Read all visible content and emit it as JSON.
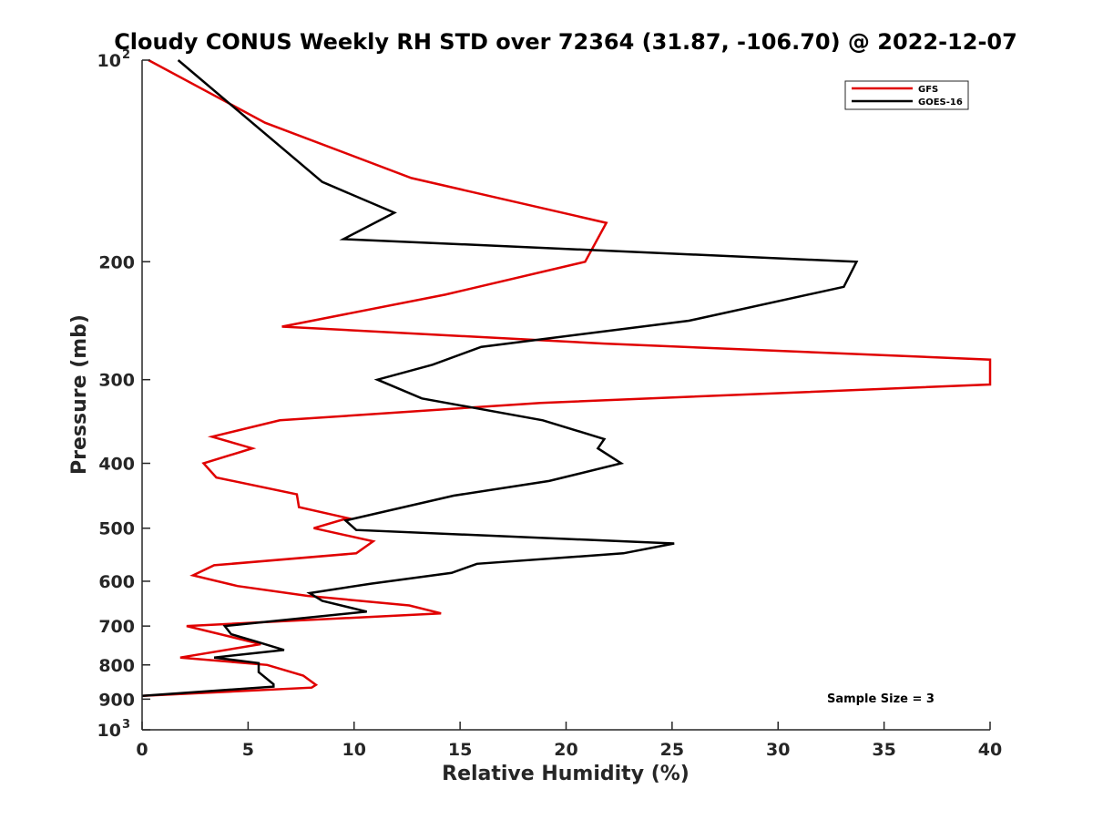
{
  "chart_data": {
    "type": "line",
    "title": "Cloudy CONUS Weekly RH STD over 72364 (31.87, -106.70) @ 2022-12-07",
    "xlabel": "Relative Humidity (%)",
    "ylabel": "Pressure (mb)",
    "xlim": [
      0,
      40
    ],
    "ylim": [
      100,
      1000
    ],
    "y_scale": "log",
    "y_reversed": true,
    "grid": false,
    "legend_position": "top-right",
    "x_ticks": [
      "0",
      "5",
      "10",
      "15",
      "20",
      "25",
      "30",
      "35",
      "40"
    ],
    "y_ticks": [
      {
        "value": 100,
        "base": "10",
        "exp": "2"
      },
      {
        "value": 200,
        "label": "200"
      },
      {
        "value": 300,
        "label": "300"
      },
      {
        "value": 400,
        "label": "400"
      },
      {
        "value": 500,
        "label": "500"
      },
      {
        "value": 600,
        "label": "600"
      },
      {
        "value": 700,
        "label": "700"
      },
      {
        "value": 800,
        "label": "800"
      },
      {
        "value": 900,
        "label": "900"
      },
      {
        "value": 1000,
        "base": "10",
        "exp": "3"
      }
    ],
    "annotation": "Sample Size = 3",
    "series": [
      {
        "name": "GFS",
        "color": "#e00000",
        "points": [
          [
            0.3,
            100
          ],
          [
            5.8,
            124
          ],
          [
            12.7,
            150
          ],
          [
            21.9,
            175
          ],
          [
            20.9,
            200
          ],
          [
            14.3,
            224
          ],
          [
            6.6,
            250
          ],
          [
            21.8,
            265
          ],
          [
            40.0,
            280
          ],
          [
            40.0,
            305
          ],
          [
            18.8,
            325
          ],
          [
            6.5,
            345
          ],
          [
            3.3,
            365
          ],
          [
            5.2,
            380
          ],
          [
            2.9,
            400
          ],
          [
            3.5,
            420
          ],
          [
            7.3,
            445
          ],
          [
            7.4,
            465
          ],
          [
            9.7,
            483
          ],
          [
            8.1,
            500
          ],
          [
            10.9,
            523
          ],
          [
            10.1,
            545
          ],
          [
            3.4,
            568
          ],
          [
            2.4,
            588
          ],
          [
            4.5,
            610
          ],
          [
            7.8,
            631
          ],
          [
            12.6,
            652
          ],
          [
            14.1,
            670
          ],
          [
            2.1,
            700
          ],
          [
            5.6,
            745
          ],
          [
            1.8,
            780
          ],
          [
            5.9,
            800
          ],
          [
            7.6,
            830
          ],
          [
            8.2,
            857
          ],
          [
            8.0,
            865
          ],
          [
            0.0,
            890
          ]
        ]
      },
      {
        "name": "GOES-16",
        "color": "#000000",
        "points": [
          [
            1.7,
            100
          ],
          [
            8.5,
            152
          ],
          [
            11.9,
            169
          ],
          [
            9.5,
            185
          ],
          [
            33.7,
            200
          ],
          [
            33.1,
            218
          ],
          [
            25.8,
            245
          ],
          [
            16.0,
            268
          ],
          [
            13.7,
            285
          ],
          [
            11.1,
            300
          ],
          [
            13.2,
            320
          ],
          [
            18.9,
            345
          ],
          [
            21.8,
            368
          ],
          [
            21.5,
            380
          ],
          [
            22.6,
            400
          ],
          [
            19.2,
            425
          ],
          [
            14.7,
            447
          ],
          [
            9.6,
            487
          ],
          [
            10.1,
            503
          ],
          [
            25.1,
            527
          ],
          [
            22.7,
            545
          ],
          [
            15.8,
            565
          ],
          [
            14.6,
            583
          ],
          [
            10.8,
            605
          ],
          [
            7.9,
            625
          ],
          [
            8.5,
            642
          ],
          [
            10.6,
            666
          ],
          [
            3.9,
            700
          ],
          [
            4.2,
            720
          ],
          [
            5.5,
            740
          ],
          [
            6.7,
            760
          ],
          [
            3.4,
            780
          ],
          [
            5.5,
            795
          ],
          [
            5.5,
            820
          ],
          [
            6.2,
            855
          ],
          [
            6.2,
            862
          ],
          [
            0.0,
            890
          ]
        ]
      }
    ]
  }
}
